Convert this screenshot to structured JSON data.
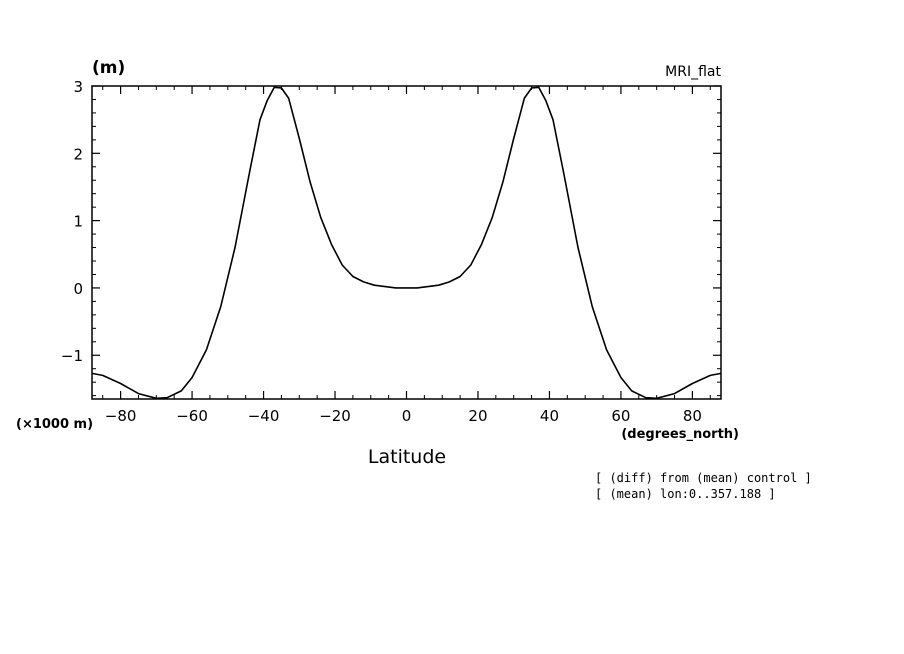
{
  "chart_data": {
    "type": "line",
    "title": "MRI_flat",
    "unit_label": "(m)",
    "y_scale_label": "(×1000 m)",
    "xlabel": "Latitude",
    "x_unit_label": "(degrees_north)",
    "xlim": [
      -88,
      88
    ],
    "ylim": [
      -1.65,
      3.0
    ],
    "x_ticks": [
      -80,
      -60,
      -40,
      -20,
      0,
      20,
      40,
      60,
      80
    ],
    "x_tick_labels": [
      "−80",
      "−60",
      "−40",
      "−20",
      "0",
      "20",
      "40",
      "60",
      "80"
    ],
    "y_ticks": [
      -1,
      0,
      1,
      2,
      3
    ],
    "y_tick_labels": [
      "−1",
      "0",
      "1",
      "2",
      "3"
    ],
    "x": [
      -88,
      -85,
      -80,
      -75,
      -70,
      -67,
      -63,
      -60,
      -56,
      -52,
      -48,
      -44,
      -41,
      -39,
      -37,
      -35,
      -33,
      -30,
      -27,
      -24,
      -21,
      -18,
      -15,
      -12,
      -9,
      -6,
      -3,
      0,
      3,
      6,
      9,
      12,
      15,
      18,
      21,
      24,
      27,
      30,
      33,
      35,
      37,
      39,
      41,
      44,
      48,
      52,
      56,
      60,
      63,
      67,
      70,
      75,
      80,
      85,
      88
    ],
    "y": [
      -1.27,
      -1.3,
      -1.42,
      -1.57,
      -1.64,
      -1.63,
      -1.53,
      -1.33,
      -0.92,
      -0.28,
      0.6,
      1.7,
      2.5,
      2.78,
      2.98,
      2.97,
      2.82,
      2.22,
      1.58,
      1.05,
      0.65,
      0.34,
      0.17,
      0.09,
      0.04,
      0.02,
      0.0,
      0.0,
      0.0,
      0.02,
      0.04,
      0.09,
      0.17,
      0.34,
      0.65,
      1.05,
      1.58,
      2.22,
      2.82,
      2.97,
      2.98,
      2.78,
      2.5,
      1.7,
      0.6,
      -0.28,
      -0.92,
      -1.33,
      -1.53,
      -1.63,
      -1.64,
      -1.57,
      -1.42,
      -1.3,
      -1.27
    ],
    "grid": false,
    "legend": "none"
  },
  "notes": [
    "[ (diff) from (mean) control ]",
    "[ (mean) lon:0..357.188 ]"
  ]
}
